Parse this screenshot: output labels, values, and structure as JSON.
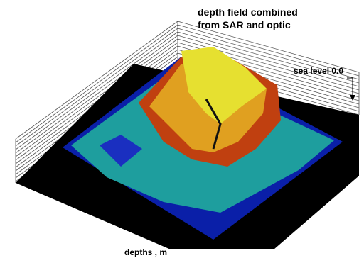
{
  "chart_data": {
    "type": "surface",
    "title": [
      "depth field  combined",
      "from SAR and optic"
    ],
    "annotation": "sea level  0.0",
    "xlabel": "depths , m"
  }
}
